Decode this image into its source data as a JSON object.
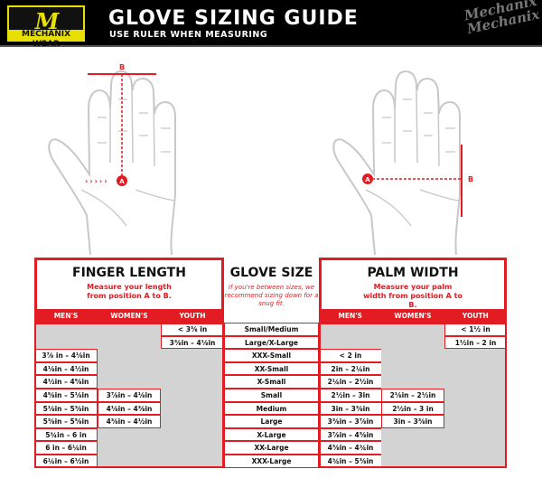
{
  "header": {
    "logo_text": "MECHANIX WEAR",
    "title": "GLOVE SIZING GUIDE",
    "subtitle": "USE RULER WHEN MEASURING",
    "watermark": "Mechanix"
  },
  "hands": {
    "left": {
      "point_a": "A",
      "point_b": "B"
    },
    "right": {
      "point_a": "A",
      "point_b": "B"
    }
  },
  "colors": {
    "accent": "#e31b23",
    "gray": "#d3d3d3",
    "header_bg": "#000000",
    "logo": "#e8e000"
  },
  "finger_length": {
    "title": "FINGER LENGTH",
    "instruction": "Measure your length from position A to B.",
    "columns": [
      "MEN'S",
      "WOMEN'S",
      "YOUTH"
    ]
  },
  "glove_size": {
    "title": "GLOVE SIZE",
    "note": "If you're between sizes, we recommend sizing down for a snug fit."
  },
  "palm_width": {
    "title": "PALM WIDTH",
    "instruction": "Measure your palm width from position A to B.",
    "columns": [
      "MEN'S",
      "WOMEN'S",
      "YOUTH"
    ]
  },
  "rows": [
    {
      "size": "Small/Medium",
      "finger": [
        null,
        null,
        "< 3⅜ in"
      ],
      "palm": [
        null,
        null,
        "< 1½ in"
      ]
    },
    {
      "size": "Large/X-Large",
      "finger": [
        null,
        null,
        "3⅜in – 4⅛in"
      ],
      "palm": [
        null,
        null,
        "1½in – 2 in"
      ]
    },
    {
      "size": "XXX-Small",
      "finger": [
        "3⅞ in – 4⅛in",
        null,
        null
      ],
      "palm": [
        "< 2 in",
        null,
        null
      ]
    },
    {
      "size": "XX-Small",
      "finger": [
        "4⅛in – 4½in",
        null,
        null
      ],
      "palm": [
        "2in – 2¼in",
        null,
        null
      ]
    },
    {
      "size": "X-Small",
      "finger": [
        "4½in – 4⅝in",
        null,
        null
      ],
      "palm": [
        "2¼in – 2½in",
        null,
        null
      ]
    },
    {
      "size": "Small",
      "finger": [
        "4⅝in – 5⅛in",
        "3⅞in – 4⅛in",
        null
      ],
      "palm": [
        "2½in – 3in",
        "2⅛in – 2½in",
        null
      ]
    },
    {
      "size": "Medium",
      "finger": [
        "5⅛in – 5⅜in",
        "4⅛in – 4⅜in",
        null
      ],
      "palm": [
        "3in – 3⅜in",
        "2½in – 3 in",
        null
      ]
    },
    {
      "size": "Large",
      "finger": [
        "5⅜in – 5⅝in",
        "4⅜in – 4½in",
        null
      ],
      "palm": [
        "3⅜in – 3⅞in",
        "3in – 3⅜in",
        null
      ]
    },
    {
      "size": "X-Large",
      "finger": [
        "5¾in – 6 in",
        null,
        null
      ],
      "palm": [
        "3⅞in – 4⅜in",
        null,
        null
      ]
    },
    {
      "size": "XX-Large",
      "finger": [
        "6 in – 6¼in",
        null,
        null
      ],
      "palm": [
        "4⅜in – 4¾in",
        null,
        null
      ]
    },
    {
      "size": "XXX-Large",
      "finger": [
        "6¼in – 6½in",
        null,
        null
      ],
      "palm": [
        "4¾in – 5⅜in",
        null,
        null
      ]
    }
  ]
}
